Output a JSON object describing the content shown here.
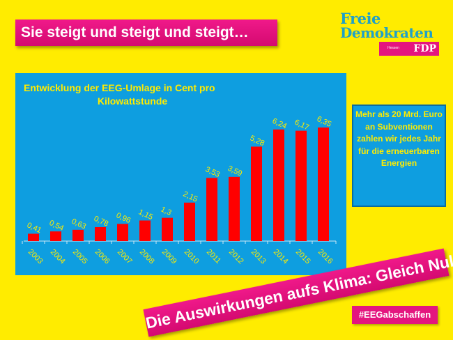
{
  "slide": {
    "headline": "Sie steigt und steigt und steigt…",
    "logo": {
      "line1": "Freie",
      "line2": "Demokraten",
      "region": "Hessen",
      "party": "FDP"
    },
    "side_note": "Mehr als 20 Mrd. Euro an Subventionen zahlen wir jedes Jahr für die erneuerbaren Energien",
    "banner": "Die Auswirkungen aufs Klima: Gleich Null !",
    "hashtag": "#EEGabschaffen"
  },
  "colors": {
    "background": "#ffec00",
    "panel": "#0e9ee0",
    "bar": "#ff0000",
    "label": "#ffec00",
    "accent": "#e4157f"
  },
  "chart_data": {
    "type": "bar",
    "title": "Entwicklung der EEG-Umlage in Cent pro Kilowattstunde",
    "title_line1": "Entwicklung der EEG-Umlage in Cent pro",
    "title_line2": "Kilowattstunde",
    "categories": [
      "2003",
      "2004",
      "2005",
      "2006",
      "2007",
      "2008",
      "2009",
      "2010",
      "2011",
      "2012",
      "2013",
      "2014",
      "2015",
      "2016"
    ],
    "values": [
      0.41,
      0.54,
      0.63,
      0.78,
      0.96,
      1.15,
      1.3,
      2.15,
      3.53,
      3.59,
      5.28,
      6.24,
      6.17,
      6.35
    ],
    "data_labels": [
      "0,41",
      "0,54",
      "0,63",
      "0,78",
      "0,96",
      "1,15",
      "1,3",
      "2,15",
      "3,53",
      "3,59",
      "5,28",
      "6,24",
      "6,17",
      "6,35"
    ],
    "xlabel": "",
    "ylabel": "",
    "ylim": [
      0,
      6.5
    ],
    "grid": false,
    "legend": "none"
  }
}
